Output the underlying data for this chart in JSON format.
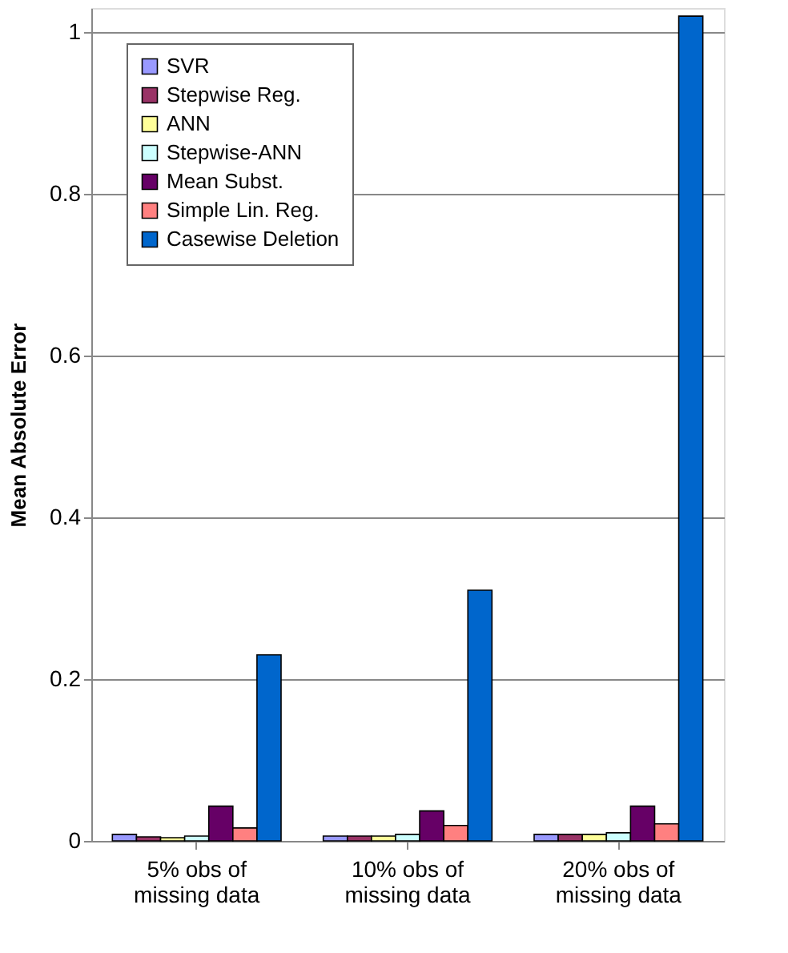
{
  "chart_data": {
    "type": "bar",
    "ylabel": "Mean Absolute Error",
    "categories": [
      "5% obs of\nmissing data",
      "10% obs of\nmissing data",
      "20% obs of\nmissing data"
    ],
    "series": [
      {
        "name": "SVR",
        "color": "#9999ff",
        "values": [
          0.008,
          0.006,
          0.008
        ]
      },
      {
        "name": "Stepwise Reg.",
        "color": "#993366",
        "values": [
          0.005,
          0.006,
          0.008
        ]
      },
      {
        "name": "ANN",
        "color": "#ffff99",
        "values": [
          0.004,
          0.006,
          0.008
        ]
      },
      {
        "name": "Stepwise-ANN",
        "color": "#ccffff",
        "values": [
          0.006,
          0.008,
          0.01
        ]
      },
      {
        "name": "Mean Subst.",
        "color": "#660066",
        "values": [
          0.043,
          0.037,
          0.043
        ]
      },
      {
        "name": "Simple Lin. Reg.",
        "color": "#ff8080",
        "values": [
          0.016,
          0.019,
          0.021
        ]
      },
      {
        "name": "Casewise Deletion",
        "color": "#0066cc",
        "values": [
          0.23,
          0.31,
          1.02
        ]
      }
    ],
    "ylim": [
      0,
      1.03
    ],
    "yticks": [
      0,
      0.2,
      0.4,
      0.6,
      0.8,
      1
    ],
    "grid": "y",
    "legend": "top left"
  }
}
